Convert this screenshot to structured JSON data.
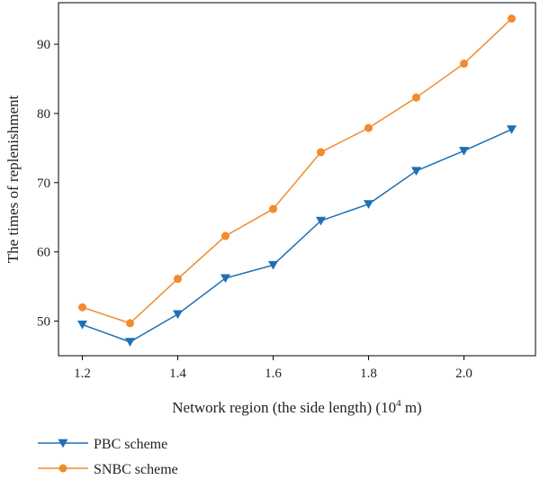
{
  "chart_data": {
    "type": "line",
    "xlabel": "Network region (the side length) (10",
    "xlabel_sup": "4",
    "xlabel_suffix": " m)",
    "ylabel": "The times of replenishment",
    "xlim": [
      1.15,
      2.15
    ],
    "ylim": [
      45,
      96
    ],
    "x": [
      1.2,
      1.3,
      1.4,
      1.5,
      1.6,
      1.7,
      1.8,
      1.9,
      2.0,
      2.1
    ],
    "xticks": [
      "1.2",
      "1.4",
      "1.6",
      "1.8",
      "2.0"
    ],
    "xtick_values": [
      1.2,
      1.4,
      1.6,
      1.8,
      2.0
    ],
    "yticks": [
      "50",
      "60",
      "70",
      "80",
      "90"
    ],
    "ytick_values": [
      50,
      60,
      70,
      80,
      90
    ],
    "grid": false,
    "legend_position": "bottom-left-below-plot",
    "series": [
      {
        "name": "PBC scheme",
        "values": [
          49.5,
          47.0,
          51.0,
          56.2,
          58.1,
          64.5,
          66.9,
          71.7,
          74.6,
          77.7
        ],
        "color": "#1f6fb5",
        "marker": "triangle-down"
      },
      {
        "name": "SNBC scheme",
        "values": [
          52.0,
          49.7,
          56.1,
          62.3,
          66.2,
          74.4,
          77.9,
          82.3,
          87.2,
          93.7
        ],
        "color": "#f28a2e",
        "marker": "circle"
      }
    ]
  }
}
